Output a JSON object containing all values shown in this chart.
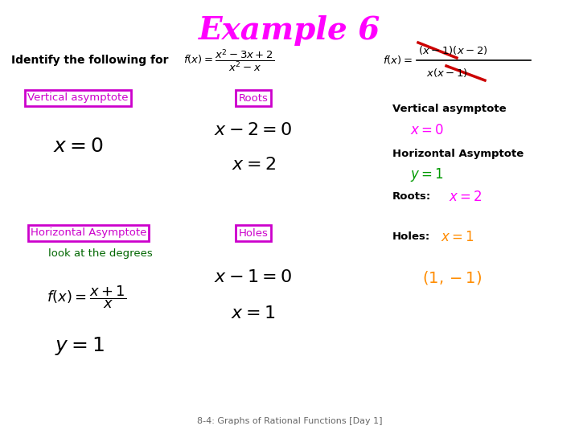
{
  "title": "Example 6",
  "title_color": "#FF00FF",
  "title_fontsize": 28,
  "background_color": "#FFFFFF",
  "identify_text": "Identify the following for",
  "box_color": "#CC00CC",
  "ans_va_color": "#FF00FF",
  "ans_ha_color": "#009900",
  "ans_roots_color": "#FF00FF",
  "ans_holes_color": "#FF8C00",
  "ans_holes_point_color": "#FF8C00",
  "ha_text_color": "#006600",
  "footer": "8-4: Graphs of Rational Functions [Day 1]",
  "footer_color": "#666666",
  "footer_fontsize": 8,
  "strikethrough_color": "#CC0000"
}
